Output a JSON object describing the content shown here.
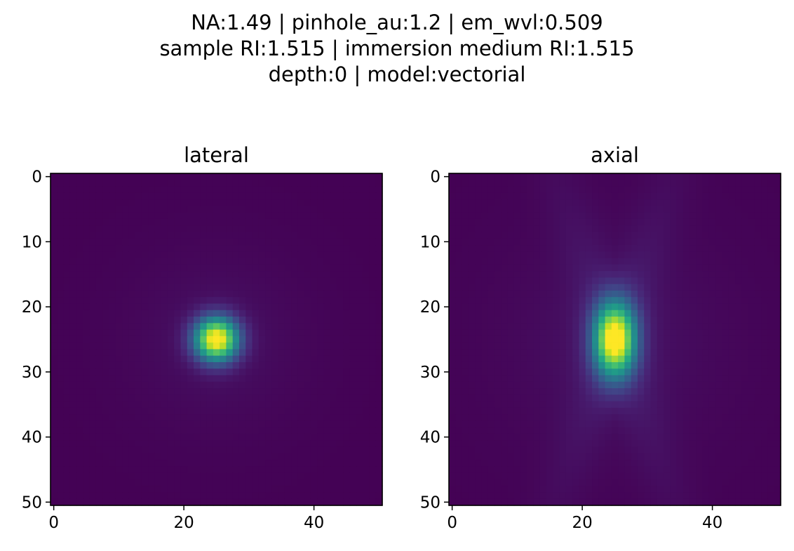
{
  "figure": {
    "suptitle_lines": [
      "NA:1.49 | pinhole_au:1.2 | em_wvl:0.509",
      "sample RI:1.515 | immersion medium RI:1.515",
      "depth:0 | model:vectorial"
    ]
  },
  "chart_data": [
    {
      "type": "heatmap",
      "title": "lateral",
      "colormap": "viridis",
      "shape": [
        51,
        51
      ],
      "xlim": [
        -0.5,
        50.5
      ],
      "ylim": [
        50.5,
        -0.5
      ],
      "y_inverted": true,
      "xticks": [
        0,
        20,
        40
      ],
      "yticks": [
        0,
        10,
        20,
        30,
        40,
        50
      ],
      "peak": {
        "x": 25,
        "y": 25,
        "value": 1.0
      },
      "spread_x": 2.3,
      "spread_y": 2.3,
      "halo": 0.07
    },
    {
      "type": "heatmap",
      "title": "axial",
      "colormap": "viridis",
      "shape": [
        51,
        51
      ],
      "xlim": [
        -0.5,
        50.5
      ],
      "ylim": [
        50.5,
        -0.5
      ],
      "y_inverted": true,
      "xticks": [
        0,
        20,
        40
      ],
      "yticks": [
        0,
        10,
        20,
        30,
        40,
        50
      ],
      "peak": {
        "x": 25,
        "y": 25,
        "value": 1.0
      },
      "spread_x": 2.2,
      "spread_y": 4.0,
      "halo": 0.12
    }
  ]
}
